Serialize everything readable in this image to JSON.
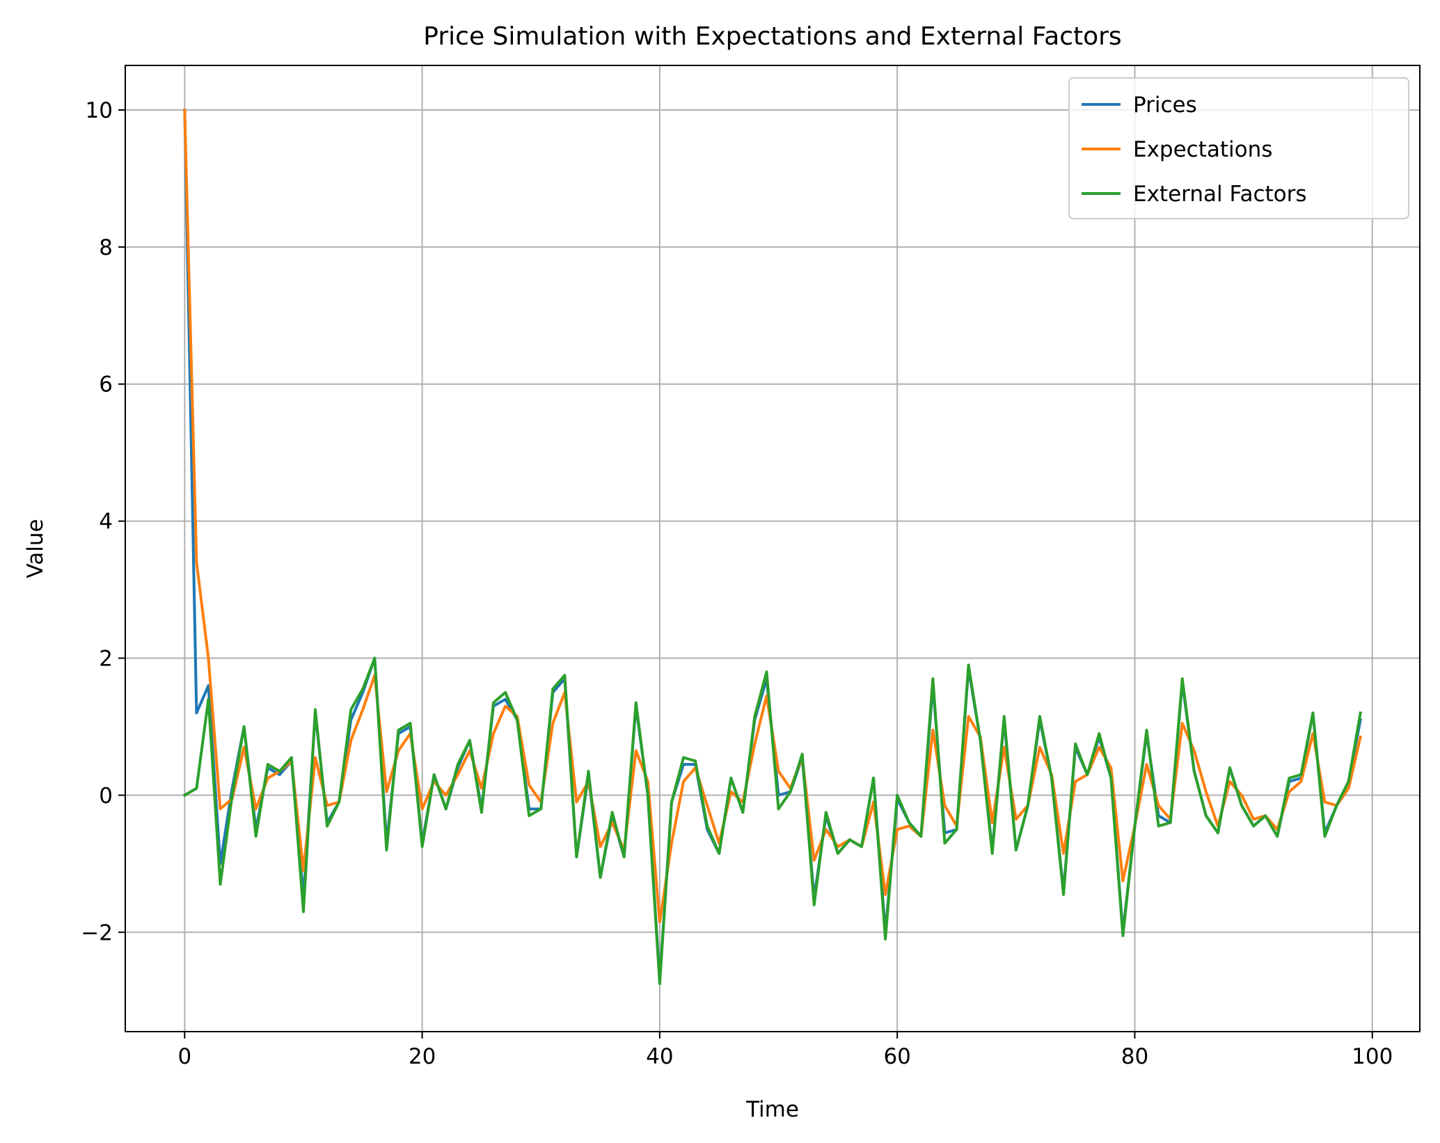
{
  "chart_data": {
    "type": "line",
    "title": "Price Simulation with Expectations and External Factors",
    "xlabel": "Time",
    "ylabel": "Value",
    "xlim": [
      -5,
      104
    ],
    "ylim": [
      -3.45,
      10.65
    ],
    "xticks": [
      0,
      20,
      40,
      60,
      80,
      100
    ],
    "yticks": [
      -2,
      0,
      2,
      4,
      6,
      8,
      10
    ],
    "xtick_labels": [
      "0",
      "20",
      "40",
      "60",
      "80",
      "100"
    ],
    "ytick_labels": [
      "−2",
      "0",
      "2",
      "4",
      "6",
      "8",
      "10"
    ],
    "grid": true,
    "legend_position": "top-right",
    "series": [
      {
        "name": "Prices",
        "color": "#1f77b4",
        "values": [
          10.0,
          1.2,
          1.6,
          -1.0,
          0.1,
          1.0,
          -0.5,
          0.4,
          0.3,
          0.5,
          -1.5,
          1.2,
          -0.4,
          -0.1,
          1.1,
          1.5,
          2.0,
          -0.7,
          0.9,
          1.0,
          -0.7,
          0.3,
          -0.2,
          0.4,
          0.8,
          -0.2,
          1.3,
          1.4,
          1.1,
          -0.2,
          -0.2,
          1.5,
          1.7,
          -0.9,
          0.3,
          -1.2,
          -0.3,
          -0.9,
          1.3,
          0.0,
          -2.7,
          -0.1,
          0.45,
          0.45,
          -0.5,
          -0.85,
          0.25,
          -0.25,
          1.1,
          1.7,
          0.0,
          0.05,
          0.55,
          -1.5,
          -0.3,
          -0.85,
          -0.65,
          -0.75,
          0.25,
          -2.0,
          -0.05,
          -0.4,
          -0.6,
          1.6,
          -0.55,
          -0.5,
          1.85,
          0.8,
          -0.8,
          1.1,
          -0.8,
          -0.15,
          1.1,
          0.25,
          -1.4,
          0.7,
          0.3,
          0.85,
          0.25,
          -2.0,
          -0.45,
          0.9,
          -0.3,
          -0.4,
          1.65,
          0.35,
          -0.3,
          -0.55,
          0.4,
          -0.15,
          -0.45,
          -0.3,
          -0.6,
          0.2,
          0.25,
          1.2,
          -0.55,
          -0.15,
          0.2,
          1.1
        ]
      },
      {
        "name": "Expectations",
        "color": "#ff7f0e",
        "values": [
          10.0,
          3.4,
          2.0,
          -0.2,
          -0.05,
          0.7,
          -0.2,
          0.25,
          0.35,
          0.5,
          -1.1,
          0.55,
          -0.15,
          -0.1,
          0.8,
          1.25,
          1.75,
          0.05,
          0.65,
          0.9,
          -0.2,
          0.2,
          0.0,
          0.3,
          0.65,
          0.1,
          0.9,
          1.3,
          1.15,
          0.15,
          -0.1,
          1.05,
          1.5,
          -0.1,
          0.2,
          -0.75,
          -0.4,
          -0.8,
          0.65,
          0.2,
          -1.85,
          -0.7,
          0.2,
          0.4,
          -0.15,
          -0.7,
          0.05,
          -0.1,
          0.75,
          1.45,
          0.35,
          0.1,
          0.55,
          -0.95,
          -0.5,
          -0.75,
          -0.65,
          -0.75,
          -0.1,
          -1.45,
          -0.5,
          -0.45,
          -0.6,
          0.95,
          -0.15,
          -0.45,
          1.15,
          0.85,
          -0.4,
          0.7,
          -0.35,
          -0.15,
          0.7,
          0.3,
          -0.85,
          0.2,
          0.3,
          0.7,
          0.4,
          -1.25,
          -0.45,
          0.45,
          -0.15,
          -0.35,
          1.05,
          0.65,
          0.05,
          -0.45,
          0.2,
          0.0,
          -0.35,
          -0.3,
          -0.5,
          0.05,
          0.2,
          0.9,
          -0.1,
          -0.15,
          0.1,
          0.85
        ]
      },
      {
        "name": "External Factors",
        "color": "#2ca02c",
        "values": [
          0.0,
          0.1,
          1.4,
          -1.3,
          0.0,
          1.0,
          -0.6,
          0.45,
          0.35,
          0.55,
          -1.7,
          1.25,
          -0.45,
          -0.1,
          1.25,
          1.55,
          2.0,
          -0.8,
          0.95,
          1.05,
          -0.75,
          0.3,
          -0.2,
          0.45,
          0.8,
          -0.25,
          1.35,
          1.5,
          1.1,
          -0.3,
          -0.2,
          1.55,
          1.75,
          -0.9,
          0.35,
          -1.2,
          -0.25,
          -0.9,
          1.35,
          0.0,
          -2.75,
          -0.1,
          0.55,
          0.5,
          -0.45,
          -0.85,
          0.25,
          -0.25,
          1.15,
          1.8,
          -0.2,
          0.05,
          0.6,
          -1.6,
          -0.25,
          -0.85,
          -0.65,
          -0.75,
          0.25,
          -2.1,
          0.0,
          -0.4,
          -0.6,
          1.7,
          -0.7,
          -0.5,
          1.9,
          0.8,
          -0.85,
          1.15,
          -0.8,
          -0.15,
          1.15,
          0.25,
          -1.45,
          0.75,
          0.3,
          0.9,
          0.25,
          -2.05,
          -0.45,
          0.95,
          -0.45,
          -0.4,
          1.7,
          0.35,
          -0.3,
          -0.55,
          0.4,
          -0.15,
          -0.45,
          -0.3,
          -0.6,
          0.25,
          0.3,
          1.2,
          -0.6,
          -0.15,
          0.2,
          1.2
        ]
      }
    ]
  }
}
